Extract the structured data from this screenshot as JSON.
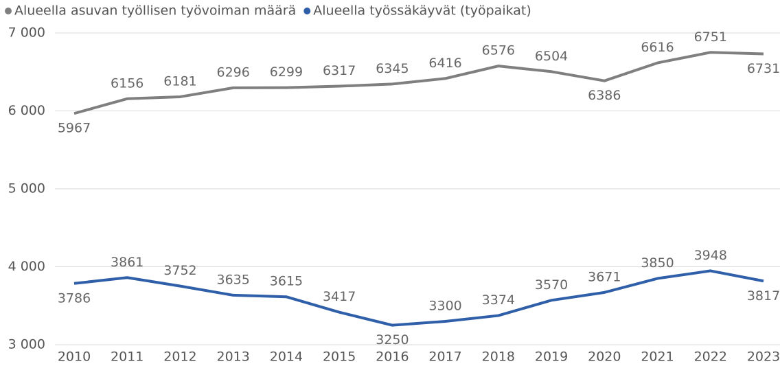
{
  "chart_data": {
    "type": "line",
    "categories": [
      "2010",
      "2011",
      "2012",
      "2013",
      "2014",
      "2015",
      "2016",
      "2017",
      "2018",
      "2019",
      "2020",
      "2021",
      "2022",
      "2023"
    ],
    "series": [
      {
        "name": "Alueella asuvan työllisen työvoiman määrä",
        "color": "#7f7f7f",
        "values": [
          5967,
          6156,
          6181,
          6296,
          6299,
          6317,
          6345,
          6416,
          6576,
          6504,
          6386,
          6616,
          6751,
          6731
        ]
      },
      {
        "name": "Alueella työssäkäyvät (työpaikat)",
        "color": "#2e5fa8",
        "values": [
          3786,
          3861,
          3752,
          3635,
          3615,
          3417,
          3250,
          3300,
          3374,
          3570,
          3671,
          3850,
          3948,
          3817
        ]
      }
    ],
    "ylim": [
      3000,
      7000
    ],
    "yticks": [
      {
        "value": 3000,
        "label": "3 000"
      },
      {
        "value": 4000,
        "label": "4 000"
      },
      {
        "value": 5000,
        "label": "5 000"
      },
      {
        "value": 6000,
        "label": "6 000"
      },
      {
        "value": 7000,
        "label": "7 000"
      }
    ],
    "grid": true,
    "legend": "top-left"
  }
}
